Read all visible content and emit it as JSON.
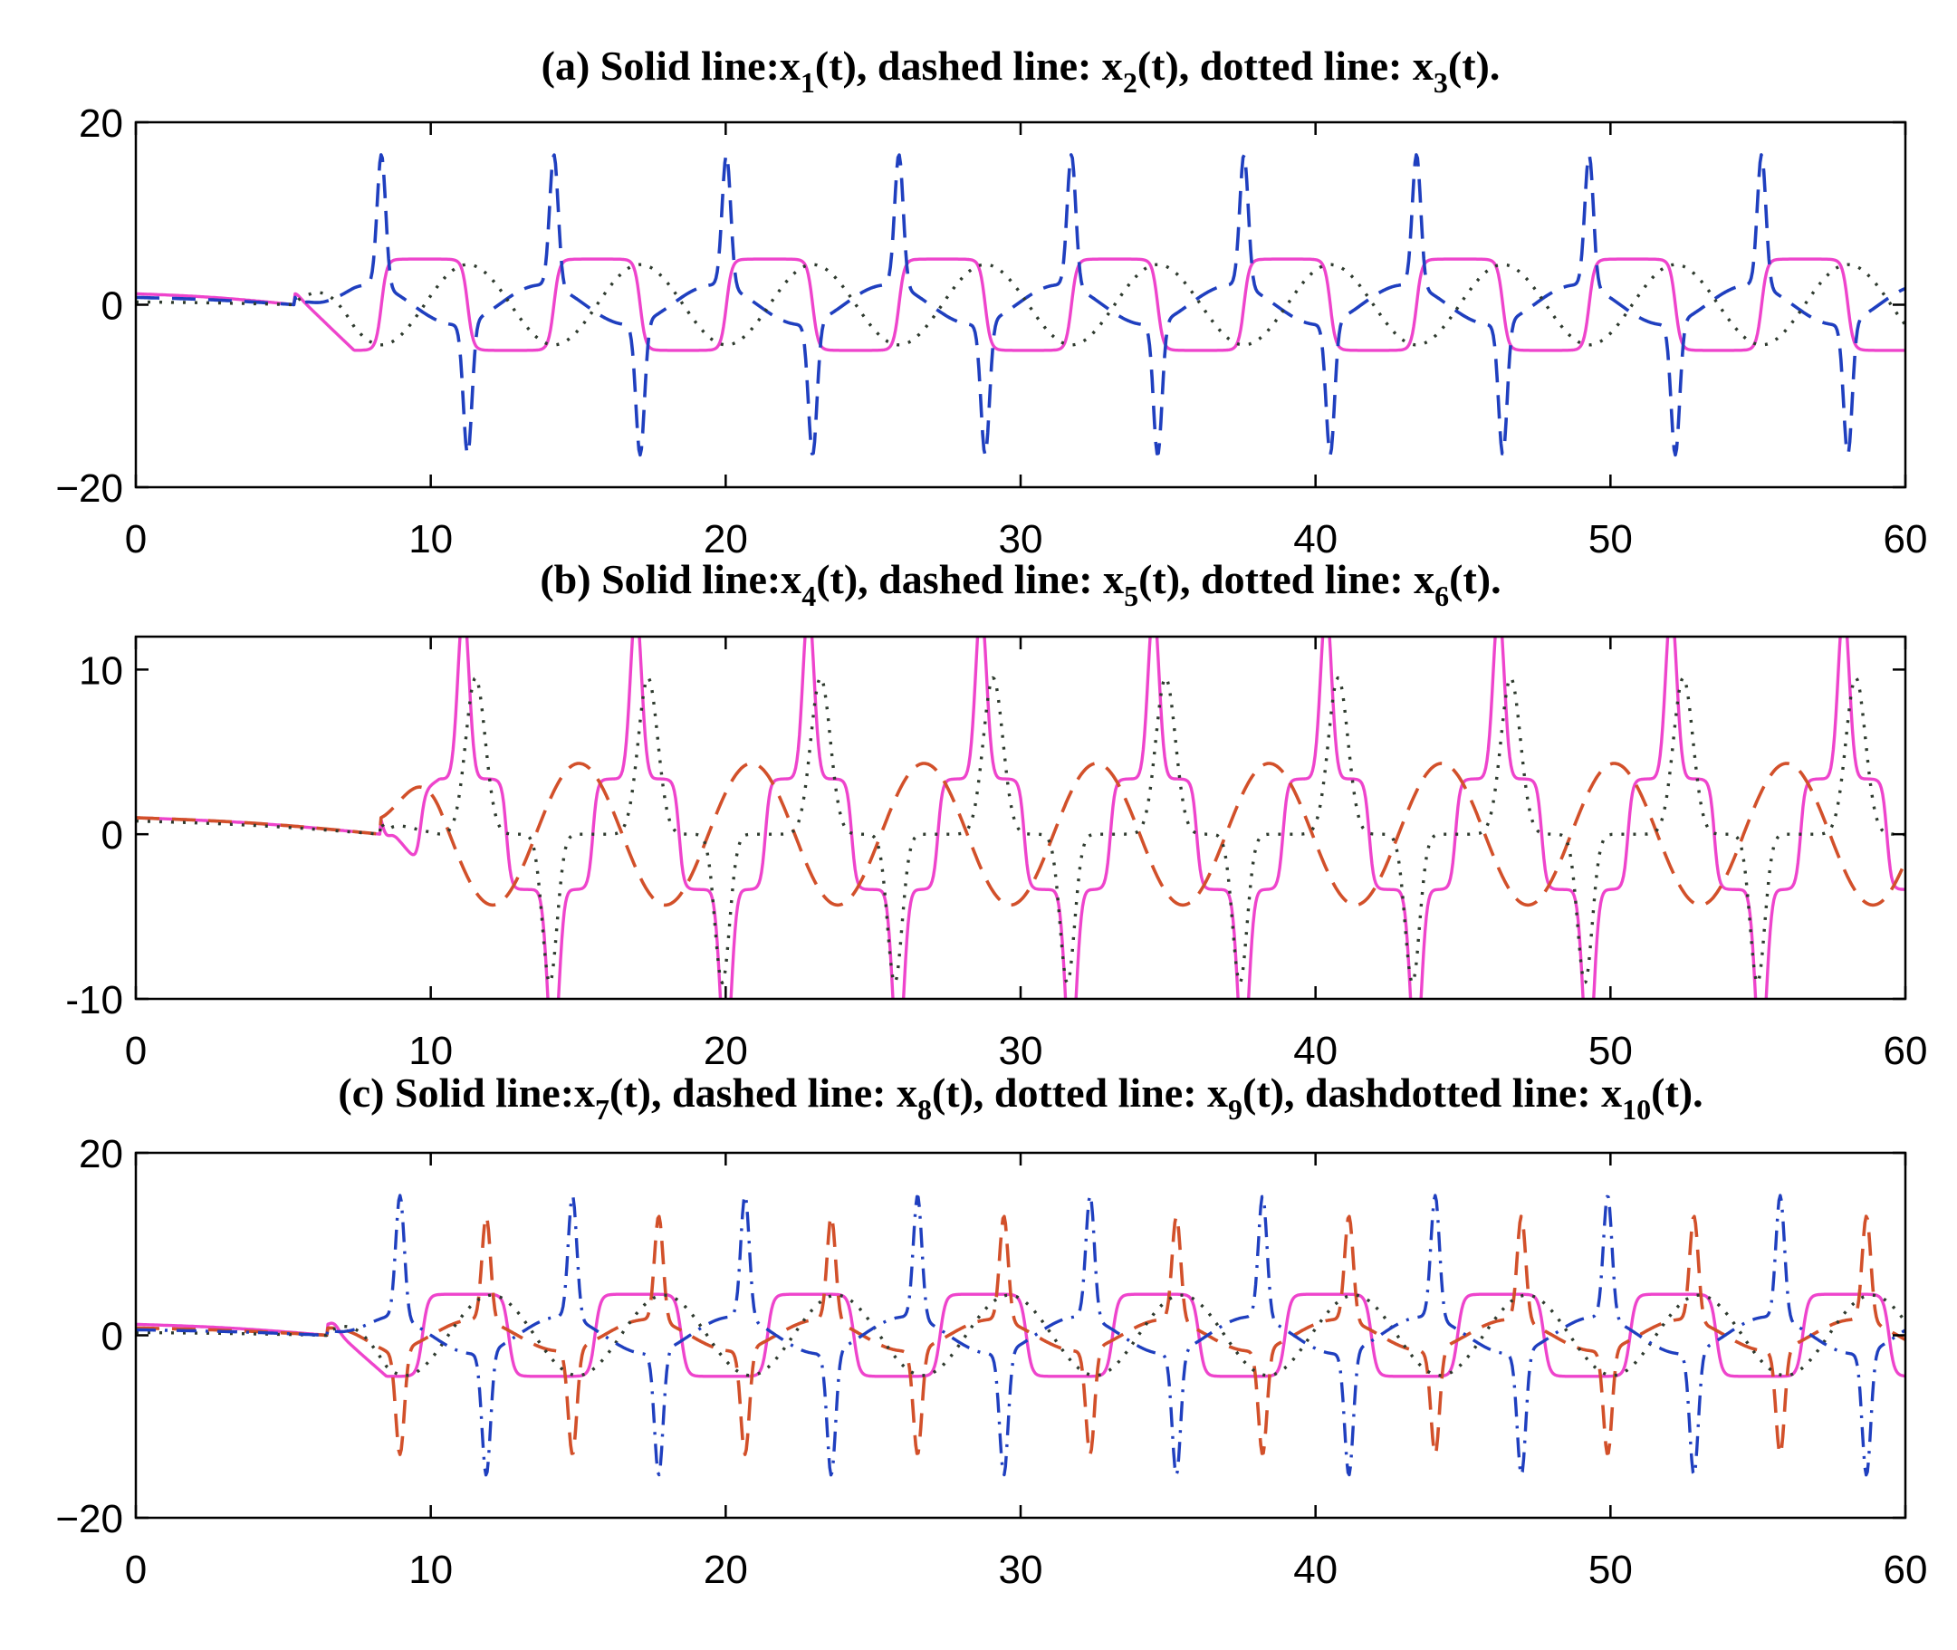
{
  "chart_data": [
    {
      "type": "line",
      "panel": "a",
      "title_parts": [
        {
          "t": "(a) Solid line:x"
        },
        {
          "t": "1",
          "sub": true
        },
        {
          "t": "(t), dashed line: x"
        },
        {
          "t": "2",
          "sub": true
        },
        {
          "t": "(t), dotted line: x"
        },
        {
          "t": "3",
          "sub": true
        },
        {
          "t": "(t)."
        }
      ],
      "xlim": [
        0,
        60
      ],
      "ylim": [
        -20,
        20
      ],
      "xticks": [
        0,
        10,
        20,
        30,
        40,
        50,
        60
      ],
      "yticks": [
        -20,
        0,
        20
      ],
      "xtick_labels": [
        "0",
        "10",
        "20",
        "30",
        "40",
        "50",
        "60"
      ],
      "ytick_labels": [
        "−20",
        "0",
        "20"
      ],
      "series": [
        {
          "name": "x1(t)",
          "style": "solid",
          "color": "#ee44cc",
          "shape": "square",
          "amp": 5,
          "period": 5.85,
          "t0": 5.4,
          "phase": 0.5,
          "init": 1.2
        },
        {
          "name": "x2(t)",
          "style": "dashed",
          "color": "#1f3fbf",
          "shape": "spike",
          "amp": 14.5,
          "period": 5.85,
          "t0": 5.4,
          "phase": 0.62,
          "init": 0.8
        },
        {
          "name": "x3(t)",
          "style": "dotted",
          "color": "#2e3a2e",
          "shape": "smooth",
          "amp": 4.4,
          "period": 5.85,
          "t0": 5.4,
          "phase": 0.25,
          "init": 0.3
        }
      ]
    },
    {
      "type": "line",
      "panel": "b",
      "title_parts": [
        {
          "t": "(b) Solid line:x"
        },
        {
          "t": "4",
          "sub": true
        },
        {
          "t": "(t), dashed line: x"
        },
        {
          "t": "5",
          "sub": true
        },
        {
          "t": "(t), dotted line: x"
        },
        {
          "t": "6",
          "sub": true
        },
        {
          "t": "(t)."
        }
      ],
      "xlim": [
        0,
        60
      ],
      "ylim": [
        -10,
        12
      ],
      "xticks": [
        0,
        10,
        20,
        30,
        40,
        50,
        60
      ],
      "yticks": [
        -10,
        0,
        10
      ],
      "xtick_labels": [
        "0",
        "10",
        "20",
        "30",
        "40",
        "50",
        "60"
      ],
      "ytick_labels": [
        "-10",
        "0",
        "10"
      ],
      "series": [
        {
          "name": "x4(t)",
          "style": "solid",
          "color": "#ee44cc",
          "shape": "pulse",
          "amp": 10.5,
          "period": 5.85,
          "t0": 8.3,
          "phase": 0.0,
          "init": 1.0
        },
        {
          "name": "x5(t)",
          "style": "dashed",
          "color": "#d2502a",
          "shape": "smooth",
          "amp": 4.3,
          "period": 5.85,
          "t0": 8.3,
          "phase": 0.1,
          "init": 1.0
        },
        {
          "name": "x6(t)",
          "style": "dotted",
          "color": "#2e3a2e",
          "shape": "ramp",
          "amp": 9.5,
          "period": 5.85,
          "t0": 8.3,
          "phase": 0.8,
          "init": 0.8
        }
      ]
    },
    {
      "type": "line",
      "panel": "c",
      "title_parts": [
        {
          "t": "(c) Solid line:x"
        },
        {
          "t": "7",
          "sub": true
        },
        {
          "t": "(t), dashed line: x"
        },
        {
          "t": "8",
          "sub": true
        },
        {
          "t": "(t), dotted line: x"
        },
        {
          "t": "9",
          "sub": true
        },
        {
          "t": "(t), dashdotted line: x"
        },
        {
          "t": "10",
          "sub": true
        },
        {
          "t": "(t)."
        }
      ],
      "xlim": [
        0,
        60
      ],
      "ylim": [
        -20,
        20
      ],
      "xticks": [
        0,
        10,
        20,
        30,
        40,
        50,
        60
      ],
      "yticks": [
        -20,
        0,
        20
      ],
      "xtick_labels": [
        "0",
        "10",
        "20",
        "30",
        "40",
        "50",
        "60"
      ],
      "ytick_labels": [
        "−20",
        "0",
        "20"
      ],
      "series": [
        {
          "name": "x7(t)",
          "style": "solid",
          "color": "#ee44cc",
          "shape": "square",
          "amp": 4.5,
          "period": 5.85,
          "t0": 6.5,
          "phase": 0.45,
          "init": 1.2
        },
        {
          "name": "x8(t)",
          "style": "dashed",
          "color": "#d2502a",
          "shape": "spike",
          "amp": 11.5,
          "period": 5.85,
          "t0": 6.5,
          "phase": 0.2,
          "init": 0.8
        },
        {
          "name": "x9(t)",
          "style": "dotted",
          "color": "#2e3a2e",
          "shape": "smooth",
          "amp": 4.4,
          "period": 5.85,
          "t0": 6.5,
          "phase": 0.3,
          "init": 0.3
        },
        {
          "name": "x10(t)",
          "style": "dashdot",
          "color": "#1f3fbf",
          "shape": "spike",
          "amp": 13.5,
          "period": 5.85,
          "t0": 6.5,
          "phase": 0.7,
          "init": 0.6
        }
      ]
    }
  ]
}
